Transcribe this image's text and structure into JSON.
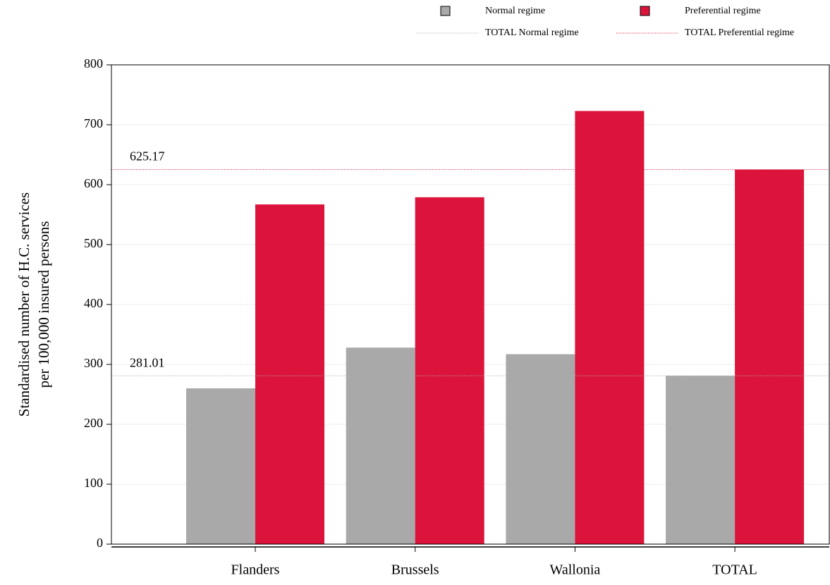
{
  "chart_data": {
    "type": "bar",
    "y_label": [
      "Standardised number of H.C. services",
      "per 100,000 insured persons"
    ],
    "categories": [
      "Flanders",
      "Brussels",
      "Wallonia",
      "TOTAL"
    ],
    "series": [
      {
        "name": "Normal regime",
        "color": "#a9a9a9",
        "values": [
          260,
          328,
          317,
          281.01
        ]
      },
      {
        "name": "Preferential regime",
        "color": "#dc143c",
        "values": [
          567,
          579,
          723,
          625.17
        ]
      }
    ],
    "reference_lines": [
      {
        "name": "TOTAL Normal regime",
        "value": 281.01,
        "color": "#a9a9a9"
      },
      {
        "name": "TOTAL Preferential regime",
        "value": 625.17,
        "color": "#dc143c"
      }
    ],
    "ylim": [
      0,
      800
    ],
    "yticks": [
      0,
      100,
      200,
      300,
      400,
      500,
      600,
      700,
      800
    ],
    "grid": true
  }
}
